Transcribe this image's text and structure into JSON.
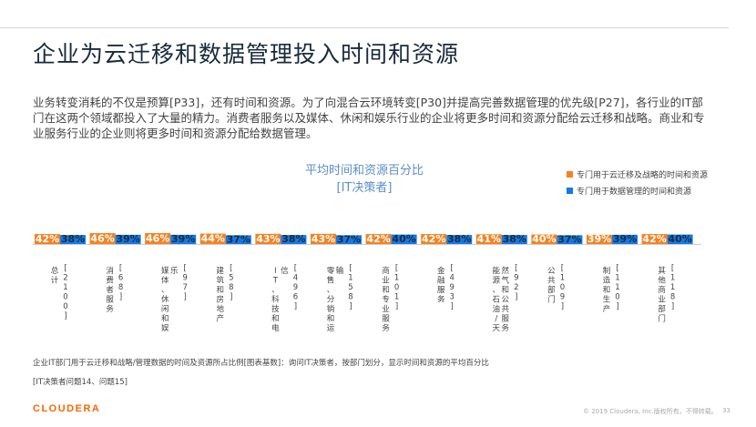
{
  "page": {
    "title": "企业为云迁移和数据管理投入时间和资源",
    "intro": "业务转变消耗的不仅是预算[P33]，还有时间和资源。为了向混合云环境转变[P30]并提高完善数据管理的优先级[P27]，各行业的IT部门在这两个领域都投入了大量的精力。消费者服务以及媒体、休闲和娱乐行业的企业将更多时间和资源分配给云迁移和战略。商业和专业服务行业的企业则将更多时间和资源分配给数据管理。",
    "footnote": "企业IT部门用于云迁移和战略/管理数据的时间及资源所占比例[图表基数]：询问IT决策者，按部门划分，显示时间和资源的平均百分比",
    "footnote2": "[IT决策者问题14、问题15]",
    "logo": "CLOUDERA",
    "copyright": "© 2019 Cloudera, Inc.版权所有。不得转载。",
    "page_number": "33"
  },
  "colors": {
    "cloud": "#f58220",
    "data": "#1479e5"
  },
  "chart_data": {
    "type": "bar",
    "title_line1": "平均时间和资源百分比",
    "title_line2": "[IT决策者]",
    "legend_position": "top-right",
    "categories": [
      {
        "name": "总计",
        "base": "[2100]"
      },
      {
        "name": "消费者服务",
        "base": "[68]"
      },
      {
        "name": "媒体、休闲和娱乐",
        "base": "[97]"
      },
      {
        "name": "建筑和房地产",
        "base": "[58]"
      },
      {
        "name": "IT、科技和电信",
        "base": "[496]"
      },
      {
        "name": "零售、分销和运输",
        "base": "[158]"
      },
      {
        "name": "商业和专业服务",
        "base": "[101]"
      },
      {
        "name": "金融服务",
        "base": "[493]"
      },
      {
        "name": "能源、石油/天然气和公共服务",
        "base": "[92]"
      },
      {
        "name": "公共部门",
        "base": "[109]"
      },
      {
        "name": "制造和生产",
        "base": "[110]"
      },
      {
        "name": "其他商业部门",
        "base": "[118]"
      }
    ],
    "series": [
      {
        "name": "专门用于云迁移及战略的时间和资源",
        "values": [
          42,
          46,
          46,
          44,
          43,
          43,
          42,
          42,
          41,
          40,
          39,
          42
        ]
      },
      {
        "name": "专门用于数据管理的时间和资源",
        "values": [
          38,
          39,
          39,
          37,
          38,
          37,
          40,
          38,
          38,
          37,
          39,
          40
        ]
      }
    ],
    "value_suffix": "%"
  }
}
